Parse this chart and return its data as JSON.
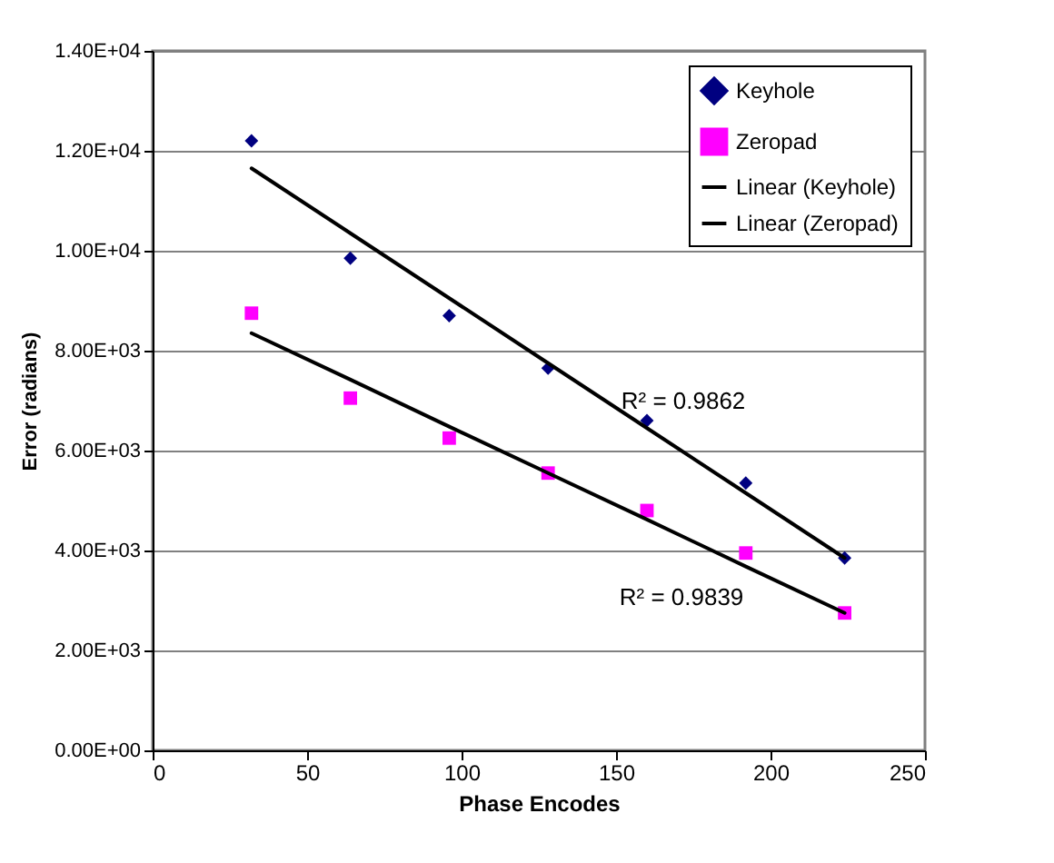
{
  "chart_data": {
    "type": "scatter",
    "xlabel": "Phase Encodes",
    "ylabel": "Error (radians)",
    "x": [
      32,
      64,
      96,
      128,
      160,
      192,
      224
    ],
    "series": [
      {
        "name": "Keyhole",
        "color": "#000080",
        "marker": "diamond",
        "values": [
          12200,
          9850,
          8700,
          7650,
          6600,
          5350,
          3850
        ]
      },
      {
        "name": "Zeropad",
        "color": "#ff00ff",
        "marker": "square",
        "values": [
          8750,
          7050,
          6250,
          5550,
          4800,
          3950,
          2750
        ]
      },
      {
        "name": "Linear (Keyhole)",
        "type": "line",
        "color": "#000000",
        "marker": "none",
        "values": [
          11650,
          10350,
          9050,
          7750,
          6450,
          5150,
          3850
        ]
      },
      {
        "name": "Linear (Zeropad)",
        "type": "line",
        "color": "#000000",
        "marker": "none",
        "values": [
          8350,
          7420,
          6480,
          5550,
          4620,
          3680,
          2750
        ]
      }
    ],
    "xlim": [
      0,
      250
    ],
    "xticks": [
      0,
      50,
      100,
      150,
      200,
      250
    ],
    "ylim": [
      0,
      14000
    ],
    "yticks": [
      {
        "value": 0,
        "label": "0.00E+00"
      },
      {
        "value": 2000,
        "label": "2.00E+03"
      },
      {
        "value": 4000,
        "label": "4.00E+03"
      },
      {
        "value": 6000,
        "label": "6.00E+03"
      },
      {
        "value": 8000,
        "label": "8.00E+03"
      },
      {
        "value": 10000,
        "label": "1.00E+04"
      },
      {
        "value": 12000,
        "label": "1.20E+04"
      },
      {
        "value": 14000,
        "label": "1.40E+04"
      }
    ],
    "annotations": [
      "R² = 0.9862",
      "R² = 0.9839"
    ],
    "grid": "y",
    "legend": "top right"
  }
}
